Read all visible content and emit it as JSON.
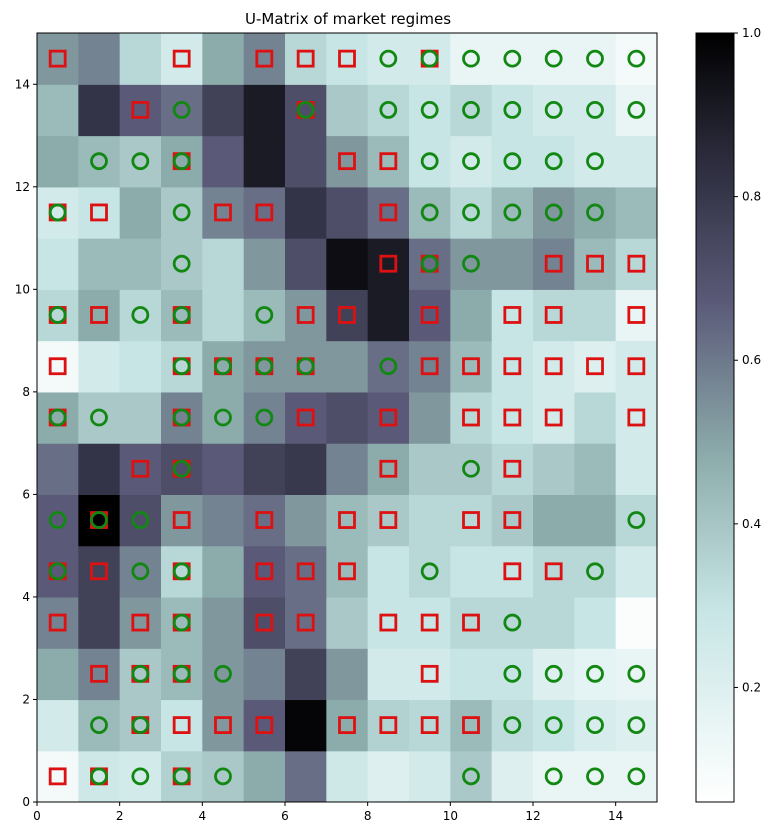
{
  "chart_data": {
    "type": "heatmap",
    "title": "U-Matrix of market regimes",
    "xlabel": "",
    "ylabel": "",
    "xlim": [
      0,
      15
    ],
    "ylim": [
      0,
      15
    ],
    "xticks": [
      "0",
      "2",
      "4",
      "6",
      "8",
      "10",
      "12",
      "14"
    ],
    "yticks": [
      "0",
      "2",
      "4",
      "6",
      "8",
      "10",
      "12",
      "14"
    ],
    "colorbar": {
      "range": [
        0.06,
        1.0
      ],
      "ticks": [
        "0.2",
        "0.4",
        "0.6",
        "0.8",
        "1.0"
      ],
      "colormap": "bone_r"
    },
    "marker_colors": {
      "square": "#dd1111",
      "circle": "#118811"
    },
    "grid": false,
    "u_matrix_rows_bottom_to_top": [
      [
        0.05,
        0.22,
        0.2,
        0.32,
        0.35,
        0.45,
        0.6,
        0.22,
        0.15,
        0.2,
        0.35,
        0.15,
        0.1,
        0.1,
        0.1
      ],
      [
        0.2,
        0.4,
        0.35,
        0.25,
        0.5,
        0.65,
        0.98,
        0.45,
        0.32,
        0.3,
        0.4,
        0.28,
        0.25,
        0.18,
        0.15
      ],
      [
        0.45,
        0.55,
        0.35,
        0.4,
        0.5,
        0.55,
        0.75,
        0.5,
        0.2,
        0.2,
        0.25,
        0.25,
        0.15,
        0.12,
        0.1
      ],
      [
        0.55,
        0.75,
        0.5,
        0.4,
        0.5,
        0.7,
        0.6,
        0.35,
        0.25,
        0.25,
        0.3,
        0.3,
        0.3,
        0.25,
        0.02
      ],
      [
        0.65,
        0.75,
        0.55,
        0.3,
        0.45,
        0.65,
        0.6,
        0.4,
        0.25,
        0.3,
        0.25,
        0.25,
        0.3,
        0.3,
        0.2
      ],
      [
        0.65,
        1.0,
        0.7,
        0.5,
        0.55,
        0.6,
        0.5,
        0.4,
        0.35,
        0.3,
        0.3,
        0.35,
        0.45,
        0.45,
        0.3
      ],
      [
        0.6,
        0.8,
        0.65,
        0.7,
        0.65,
        0.75,
        0.78,
        0.55,
        0.45,
        0.35,
        0.35,
        0.3,
        0.35,
        0.4,
        0.2
      ],
      [
        0.45,
        0.35,
        0.35,
        0.55,
        0.45,
        0.55,
        0.65,
        0.7,
        0.65,
        0.5,
        0.3,
        0.25,
        0.2,
        0.3,
        0.2
      ],
      [
        0.05,
        0.2,
        0.25,
        0.3,
        0.45,
        0.5,
        0.5,
        0.5,
        0.6,
        0.55,
        0.4,
        0.25,
        0.2,
        0.15,
        0.2
      ],
      [
        0.3,
        0.45,
        0.3,
        0.4,
        0.3,
        0.4,
        0.5,
        0.75,
        0.9,
        0.65,
        0.45,
        0.25,
        0.3,
        0.3,
        0.1
      ],
      [
        0.25,
        0.4,
        0.4,
        0.35,
        0.3,
        0.5,
        0.7,
        0.95,
        0.9,
        0.6,
        0.5,
        0.5,
        0.55,
        0.4,
        0.3
      ],
      [
        0.2,
        0.25,
        0.45,
        0.35,
        0.55,
        0.6,
        0.8,
        0.7,
        0.6,
        0.4,
        0.3,
        0.4,
        0.5,
        0.45,
        0.4
      ],
      [
        0.45,
        0.4,
        0.35,
        0.45,
        0.65,
        0.9,
        0.7,
        0.5,
        0.4,
        0.25,
        0.2,
        0.25,
        0.25,
        0.2,
        0.2
      ],
      [
        0.4,
        0.8,
        0.65,
        0.6,
        0.75,
        0.9,
        0.7,
        0.35,
        0.3,
        0.25,
        0.3,
        0.25,
        0.2,
        0.2,
        0.1
      ],
      [
        0.5,
        0.55,
        0.3,
        0.2,
        0.45,
        0.55,
        0.3,
        0.25,
        0.2,
        0.2,
        0.1,
        0.1,
        0.1,
        0.1,
        0.05
      ]
    ],
    "series": [
      {
        "marker": "square",
        "points": [
          [
            0.5,
            0.5
          ],
          [
            1.5,
            0.5
          ],
          [
            3.5,
            0.5
          ],
          [
            2.5,
            1.5
          ],
          [
            3.5,
            1.5
          ],
          [
            4.5,
            1.5
          ],
          [
            5.5,
            1.5
          ],
          [
            7.5,
            1.5
          ],
          [
            8.5,
            1.5
          ],
          [
            9.5,
            1.5
          ],
          [
            10.5,
            1.5
          ],
          [
            1.5,
            2.5
          ],
          [
            2.5,
            2.5
          ],
          [
            3.5,
            2.5
          ],
          [
            9.5,
            2.5
          ],
          [
            0.5,
            3.5
          ],
          [
            2.5,
            3.5
          ],
          [
            3.5,
            3.5
          ],
          [
            5.5,
            3.5
          ],
          [
            6.5,
            3.5
          ],
          [
            8.5,
            3.5
          ],
          [
            9.5,
            3.5
          ],
          [
            10.5,
            3.5
          ],
          [
            0.5,
            4.5
          ],
          [
            1.5,
            4.5
          ],
          [
            3.5,
            4.5
          ],
          [
            5.5,
            4.5
          ],
          [
            6.5,
            4.5
          ],
          [
            7.5,
            4.5
          ],
          [
            11.5,
            4.5
          ],
          [
            12.5,
            4.5
          ],
          [
            1.5,
            5.5
          ],
          [
            3.5,
            5.5
          ],
          [
            5.5,
            5.5
          ],
          [
            7.5,
            5.5
          ],
          [
            8.5,
            5.5
          ],
          [
            10.5,
            5.5
          ],
          [
            11.5,
            5.5
          ],
          [
            2.5,
            6.5
          ],
          [
            3.5,
            6.5
          ],
          [
            8.5,
            6.5
          ],
          [
            11.5,
            6.5
          ],
          [
            0.5,
            7.5
          ],
          [
            3.5,
            7.5
          ],
          [
            6.5,
            7.5
          ],
          [
            8.5,
            7.5
          ],
          [
            10.5,
            7.5
          ],
          [
            11.5,
            7.5
          ],
          [
            12.5,
            7.5
          ],
          [
            14.5,
            7.5
          ],
          [
            0.5,
            8.5
          ],
          [
            3.5,
            8.5
          ],
          [
            4.5,
            8.5
          ],
          [
            5.5,
            8.5
          ],
          [
            6.5,
            8.5
          ],
          [
            9.5,
            8.5
          ],
          [
            10.5,
            8.5
          ],
          [
            11.5,
            8.5
          ],
          [
            12.5,
            8.5
          ],
          [
            13.5,
            8.5
          ],
          [
            14.5,
            8.5
          ],
          [
            0.5,
            9.5
          ],
          [
            1.5,
            9.5
          ],
          [
            3.5,
            9.5
          ],
          [
            6.5,
            9.5
          ],
          [
            7.5,
            9.5
          ],
          [
            9.5,
            9.5
          ],
          [
            11.5,
            9.5
          ],
          [
            12.5,
            9.5
          ],
          [
            14.5,
            9.5
          ],
          [
            8.5,
            10.5
          ],
          [
            9.5,
            10.5
          ],
          [
            12.5,
            10.5
          ],
          [
            13.5,
            10.5
          ],
          [
            14.5,
            10.5
          ],
          [
            0.5,
            11.5
          ],
          [
            1.5,
            11.5
          ],
          [
            4.5,
            11.5
          ],
          [
            5.5,
            11.5
          ],
          [
            8.5,
            11.5
          ],
          [
            3.5,
            12.5
          ],
          [
            7.5,
            12.5
          ],
          [
            8.5,
            12.5
          ],
          [
            2.5,
            13.5
          ],
          [
            6.5,
            13.5
          ],
          [
            0.5,
            14.5
          ],
          [
            3.5,
            14.5
          ],
          [
            5.5,
            14.5
          ],
          [
            6.5,
            14.5
          ],
          [
            7.5,
            14.5
          ],
          [
            9.5,
            14.5
          ]
        ]
      },
      {
        "marker": "circle",
        "points": [
          [
            1.5,
            0.5
          ],
          [
            2.5,
            0.5
          ],
          [
            3.5,
            0.5
          ],
          [
            4.5,
            0.5
          ],
          [
            10.5,
            0.5
          ],
          [
            12.5,
            0.5
          ],
          [
            13.5,
            0.5
          ],
          [
            14.5,
            0.5
          ],
          [
            1.5,
            1.5
          ],
          [
            2.5,
            1.5
          ],
          [
            11.5,
            1.5
          ],
          [
            12.5,
            1.5
          ],
          [
            13.5,
            1.5
          ],
          [
            14.5,
            1.5
          ],
          [
            2.5,
            2.5
          ],
          [
            3.5,
            2.5
          ],
          [
            4.5,
            2.5
          ],
          [
            11.5,
            2.5
          ],
          [
            12.5,
            2.5
          ],
          [
            13.5,
            2.5
          ],
          [
            14.5,
            2.5
          ],
          [
            3.5,
            3.5
          ],
          [
            11.5,
            3.5
          ],
          [
            0.5,
            4.5
          ],
          [
            2.5,
            4.5
          ],
          [
            3.5,
            4.5
          ],
          [
            9.5,
            4.5
          ],
          [
            13.5,
            4.5
          ],
          [
            0.5,
            5.5
          ],
          [
            1.5,
            5.5
          ],
          [
            2.5,
            5.5
          ],
          [
            14.5,
            5.5
          ],
          [
            3.5,
            6.5
          ],
          [
            10.5,
            6.5
          ],
          [
            0.5,
            7.5
          ],
          [
            1.5,
            7.5
          ],
          [
            3.5,
            7.5
          ],
          [
            4.5,
            7.5
          ],
          [
            5.5,
            7.5
          ],
          [
            3.5,
            8.5
          ],
          [
            4.5,
            8.5
          ],
          [
            5.5,
            8.5
          ],
          [
            6.5,
            8.5
          ],
          [
            8.5,
            8.5
          ],
          [
            0.5,
            9.5
          ],
          [
            2.5,
            9.5
          ],
          [
            3.5,
            9.5
          ],
          [
            5.5,
            9.5
          ],
          [
            3.5,
            10.5
          ],
          [
            9.5,
            10.5
          ],
          [
            10.5,
            10.5
          ],
          [
            0.5,
            11.5
          ],
          [
            3.5,
            11.5
          ],
          [
            9.5,
            11.5
          ],
          [
            10.5,
            11.5
          ],
          [
            11.5,
            11.5
          ],
          [
            12.5,
            11.5
          ],
          [
            13.5,
            11.5
          ],
          [
            1.5,
            12.5
          ],
          [
            2.5,
            12.5
          ],
          [
            3.5,
            12.5
          ],
          [
            9.5,
            12.5
          ],
          [
            10.5,
            12.5
          ],
          [
            11.5,
            12.5
          ],
          [
            12.5,
            12.5
          ],
          [
            13.5,
            12.5
          ],
          [
            3.5,
            13.5
          ],
          [
            6.5,
            13.5
          ],
          [
            8.5,
            13.5
          ],
          [
            9.5,
            13.5
          ],
          [
            10.5,
            13.5
          ],
          [
            11.5,
            13.5
          ],
          [
            12.5,
            13.5
          ],
          [
            13.5,
            13.5
          ],
          [
            14.5,
            13.5
          ],
          [
            8.5,
            14.5
          ],
          [
            9.5,
            14.5
          ],
          [
            10.5,
            14.5
          ],
          [
            11.5,
            14.5
          ],
          [
            12.5,
            14.5
          ],
          [
            13.5,
            14.5
          ],
          [
            14.5,
            14.5
          ]
        ]
      }
    ]
  }
}
